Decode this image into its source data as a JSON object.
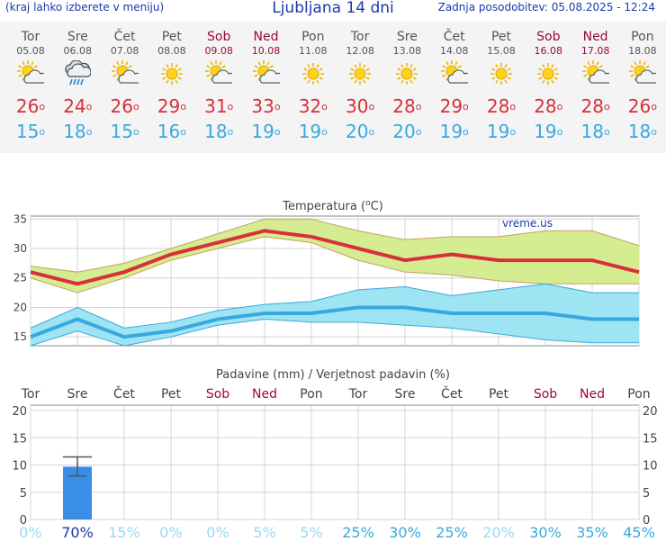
{
  "header": {
    "left_note": "(kraj lahko izberete v meniju)",
    "title": "Ljubljana 14 dni",
    "updated": "Zadnja posodobitev: 05.08.2025 - 12:24"
  },
  "icons": {
    "sunny": "sun-icon",
    "partly_cloudy": "sun-cloud-icon",
    "rain": "rain-cloud-icon"
  },
  "days": [
    {
      "name": "Tor",
      "date": "05.08",
      "weekend": false,
      "icon": "partly_cloudy",
      "tmax": 26,
      "tmin": 15
    },
    {
      "name": "Sre",
      "date": "06.08",
      "weekend": false,
      "icon": "rain",
      "tmax": 24,
      "tmin": 18
    },
    {
      "name": "Čet",
      "date": "07.08",
      "weekend": false,
      "icon": "partly_cloudy",
      "tmax": 26,
      "tmin": 15
    },
    {
      "name": "Pet",
      "date": "08.08",
      "weekend": false,
      "icon": "sunny",
      "tmax": 29,
      "tmin": 16
    },
    {
      "name": "Sob",
      "date": "09.08",
      "weekend": true,
      "icon": "partly_cloudy",
      "tmax": 31,
      "tmin": 18
    },
    {
      "name": "Ned",
      "date": "10.08",
      "weekend": true,
      "icon": "partly_cloudy",
      "tmax": 33,
      "tmin": 19
    },
    {
      "name": "Pon",
      "date": "11.08",
      "weekend": false,
      "icon": "sunny",
      "tmax": 32,
      "tmin": 19
    },
    {
      "name": "Tor",
      "date": "12.08",
      "weekend": false,
      "icon": "sunny",
      "tmax": 30,
      "tmin": 20
    },
    {
      "name": "Sre",
      "date": "13.08",
      "weekend": false,
      "icon": "sunny",
      "tmax": 28,
      "tmin": 20
    },
    {
      "name": "Čet",
      "date": "14.08",
      "weekend": false,
      "icon": "partly_cloudy",
      "tmax": 29,
      "tmin": 19
    },
    {
      "name": "Pet",
      "date": "15.08",
      "weekend": false,
      "icon": "sunny",
      "tmax": 28,
      "tmin": 19
    },
    {
      "name": "Sob",
      "date": "16.08",
      "weekend": true,
      "icon": "sunny",
      "tmax": 28,
      "tmin": 19
    },
    {
      "name": "Ned",
      "date": "17.08",
      "weekend": true,
      "icon": "partly_cloudy",
      "tmax": 28,
      "tmin": 18
    },
    {
      "name": "Pon",
      "date": "18.08",
      "weekend": false,
      "icon": "partly_cloudy",
      "tmax": 26,
      "tmin": 18
    }
  ],
  "degree_symbol": "o",
  "colors": {
    "max_line": "#d8303a",
    "max_band": "#d6ec90",
    "min_line": "#38a8e0",
    "min_band": "#9ee4f2",
    "precip_bar": "#3a8ee8",
    "weekend": "#9a0a3c",
    "prob_low": "#9ad8f4",
    "prob_mid": "#38a8e0",
    "prob_high": "#1a3aa8"
  },
  "chart_data": [
    {
      "type": "line",
      "title": "Temperatura (oC)",
      "title_main": "Temperatura (",
      "title_sup": "o",
      "title_unit": "C)",
      "watermark": "vreme.us",
      "y_ticks": [
        15,
        20,
        25,
        30,
        35
      ],
      "ylim": [
        13.5,
        35.5
      ],
      "grid": true,
      "series": [
        {
          "values": [
            26,
            24,
            26,
            29,
            31,
            33,
            32,
            30,
            28,
            29,
            28,
            28,
            28,
            26
          ]
        },
        {
          "values": [
            15,
            18,
            15,
            16,
            18,
            19,
            19,
            20,
            20,
            19,
            19,
            19,
            18,
            18
          ]
        }
      ],
      "bands": [
        {
          "upper": [
            27,
            26,
            27.5,
            30,
            32.5,
            35,
            35,
            33,
            31.5,
            32,
            32,
            33,
            33,
            30.5
          ],
          "lower": [
            25,
            22.5,
            25,
            28,
            30,
            32,
            31,
            28,
            26,
            25.5,
            24.5,
            24,
            24,
            24
          ]
        },
        {
          "upper": [
            16.5,
            20,
            16.5,
            17.5,
            19.5,
            20.5,
            21,
            23,
            23.5,
            22,
            23,
            24,
            22.5,
            22.5
          ],
          "lower": [
            13.5,
            16,
            13.5,
            15,
            17,
            18,
            17.5,
            17.5,
            17,
            16.5,
            15.5,
            14.5,
            14,
            14
          ]
        }
      ]
    },
    {
      "type": "bar",
      "title": "Padavine (mm) / Verjetnost padavin (%)",
      "categories": [
        "Tor",
        "Sre",
        "Čet",
        "Pet",
        "Sob",
        "Ned",
        "Pon",
        "Tor",
        "Sre",
        "Čet",
        "Pet",
        "Sob",
        "Ned",
        "Pon"
      ],
      "weekend": [
        false,
        false,
        false,
        false,
        true,
        true,
        false,
        false,
        false,
        false,
        false,
        true,
        true,
        false
      ],
      "y_ticks": [
        0,
        5,
        10,
        15,
        20
      ],
      "ylim": [
        0,
        21
      ],
      "grid": true,
      "values": [
        0,
        9.7,
        0,
        0,
        0,
        0,
        0,
        0,
        0,
        0,
        0,
        0,
        0,
        0
      ],
      "error_high": [
        null,
        11.5,
        null,
        null,
        null,
        null,
        null,
        null,
        null,
        null,
        null,
        null,
        null,
        null
      ],
      "error_low": [
        null,
        8,
        null,
        null,
        null,
        null,
        null,
        null,
        null,
        null,
        null,
        null,
        null,
        null
      ],
      "probability": [
        "0%",
        "70%",
        "15%",
        "0%",
        "0%",
        "5%",
        "5%",
        "25%",
        "30%",
        "25%",
        "20%",
        "30%",
        "35%",
        "45%"
      ]
    }
  ]
}
